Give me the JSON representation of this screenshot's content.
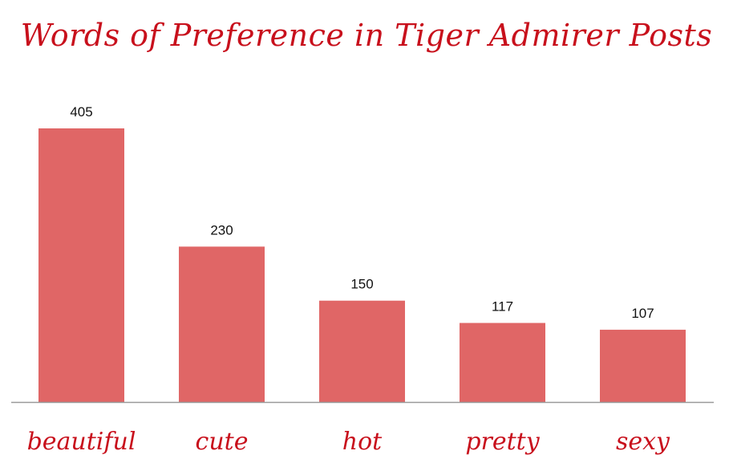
{
  "chart_data": {
    "type": "bar",
    "title": "Words of Preference in Tiger Admirer Posts",
    "categories": [
      "beautiful",
      "cute",
      "hot",
      "pretty",
      "sexy"
    ],
    "values": [
      405,
      230,
      150,
      117,
      107
    ],
    "xlabel": "",
    "ylabel": "",
    "ylim": [
      0,
      405
    ],
    "grid": false,
    "legend": "none",
    "colors": {
      "bar": "#e06666",
      "title": "#c8101c",
      "category_label": "#c8101c",
      "axis": "#999999",
      "value_label": "#111111"
    }
  }
}
